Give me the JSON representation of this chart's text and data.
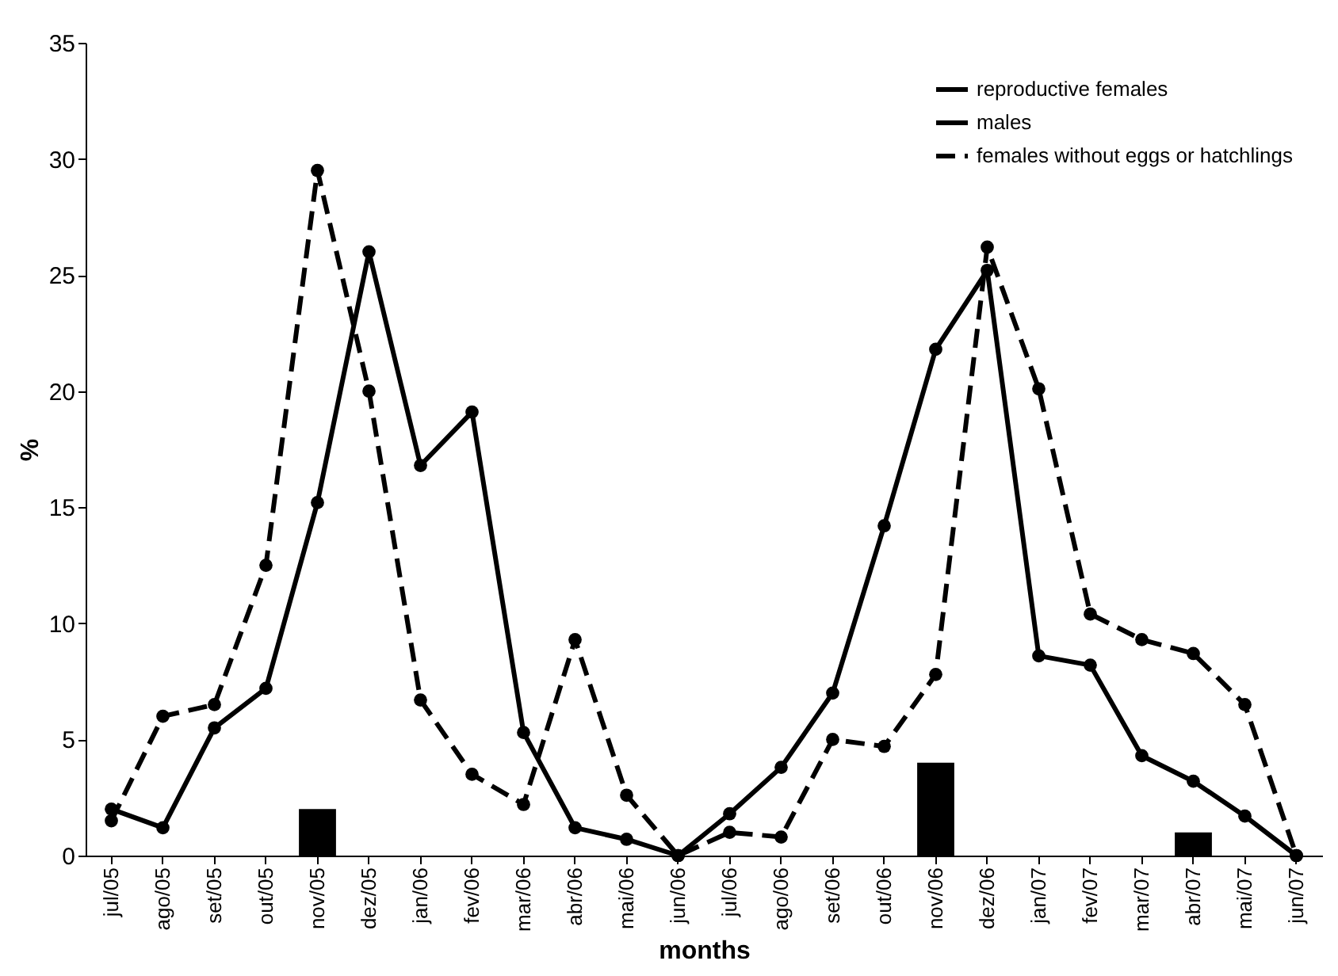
{
  "chart_data": {
    "type": "line",
    "xlabel": "months",
    "ylabel": "%",
    "categories": [
      "jul/05",
      "ago/05",
      "set/05",
      "out/05",
      "nov/05",
      "dez/05",
      "jan/06",
      "fev/06",
      "mar/06",
      "abr/06",
      "mai/06",
      "jun/06",
      "jul/06",
      "ago/06",
      "set/06",
      "out/06",
      "nov/06",
      "dez/06",
      "jan/07",
      "fev/07",
      "mar/07",
      "abr/07",
      "mai/07",
      "jun/07"
    ],
    "series": [
      {
        "name": "reproductive females",
        "type": "bar",
        "color": "#000000",
        "values": [
          0,
          0,
          0,
          0,
          2,
          0,
          0,
          0,
          0,
          0,
          0,
          0,
          0,
          0,
          0,
          0,
          4,
          0,
          0,
          0,
          0,
          1,
          0,
          0
        ]
      },
      {
        "name": "males",
        "color": "#000000",
        "line_style": "solid",
        "values": [
          2,
          1.2,
          5.5,
          7.2,
          15.2,
          26,
          16.8,
          19.1,
          5.3,
          1.2,
          0.7,
          0,
          1.8,
          3.8,
          7,
          14.2,
          21.8,
          25.2,
          8.6,
          8.2,
          4.3,
          3.2,
          1.7,
          0
        ]
      },
      {
        "name": "females without eggs or hatchlings",
        "color": "#000000",
        "line_style": "dashed",
        "values": [
          1.5,
          6,
          6.5,
          12.5,
          29.5,
          20,
          6.7,
          3.5,
          2.2,
          9.3,
          2.6,
          0,
          1,
          0.8,
          5,
          4.7,
          7.8,
          26.2,
          20.1,
          10.4,
          9.3,
          8.7,
          6.5,
          0
        ]
      }
    ],
    "ylim": [
      0,
      35
    ],
    "yticks": [
      0,
      5,
      10,
      15,
      20,
      25,
      30,
      35
    ],
    "grid": false,
    "legend": "top right",
    "marker": "circle"
  }
}
